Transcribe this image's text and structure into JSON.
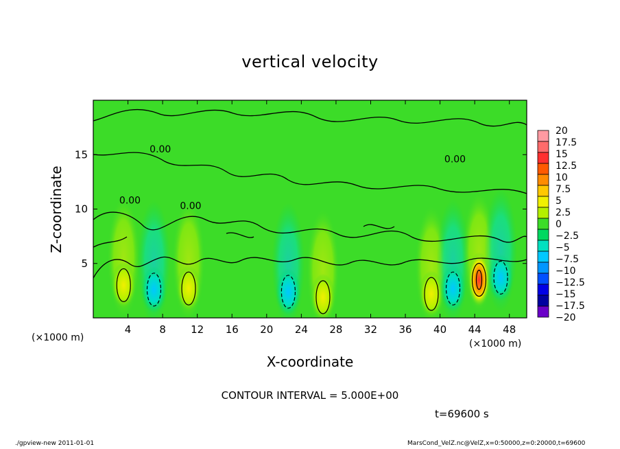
{
  "chart_data": {
    "type": "heatmap",
    "title": "vertical velocity",
    "xlabel": "X-coordinate",
    "ylabel": "Z-coordinate",
    "x_unit_label": "(×1000 m)",
    "x_ticks": [
      4,
      8,
      12,
      16,
      20,
      24,
      28,
      32,
      36,
      40,
      44,
      48
    ],
    "y_ticks": [
      5,
      10,
      15
    ],
    "xlim": [
      0,
      50
    ],
    "ylim": [
      0,
      20
    ],
    "colorbar": {
      "labels": [
        "20",
        "17.5",
        "15",
        "12.5",
        "10",
        "7.5",
        "5",
        "2.5",
        "0",
        "−2.5",
        "−5",
        "−7.5",
        "−10",
        "−12.5",
        "−15",
        "−17.5",
        "−20"
      ],
      "colors": [
        "#ff9aa2",
        "#ff6b6b",
        "#ff3030",
        "#ff5a00",
        "#ff8c00",
        "#ffc800",
        "#f0f000",
        "#b4f000",
        "#3cdc28",
        "#00d860",
        "#00e0c0",
        "#00c8ff",
        "#0096ff",
        "#0050ff",
        "#0000e6",
        "#0000a0",
        "#6a00c8"
      ]
    },
    "features": [
      {
        "x": 3.5,
        "z": 3.0,
        "sign": "positive"
      },
      {
        "x": 7.0,
        "z": 2.6,
        "sign": "negative"
      },
      {
        "x": 11.0,
        "z": 2.7,
        "sign": "positive"
      },
      {
        "x": 22.5,
        "z": 2.4,
        "sign": "negative"
      },
      {
        "x": 26.5,
        "z": 1.9,
        "sign": "positive"
      },
      {
        "x": 39.0,
        "z": 2.2,
        "sign": "positive"
      },
      {
        "x": 41.5,
        "z": 2.7,
        "sign": "negative"
      },
      {
        "x": 44.5,
        "z": 3.5,
        "sign": "positive"
      },
      {
        "x": 47.0,
        "z": 3.7,
        "sign": "negative"
      }
    ],
    "contour_labels": [
      {
        "text": "0.00",
        "x": 6.5,
        "z": 15.2
      },
      {
        "text": "0.00",
        "x": 10.0,
        "z": 10.0
      },
      {
        "text": "0.00",
        "x": 40.5,
        "z": 14.3
      },
      {
        "text": "0.00",
        "x": 3.0,
        "z": 10.5
      }
    ]
  },
  "contour_interval": "CONTOUR INTERVAL = 5.000E+00",
  "time_label": "t=69600 s",
  "footer_left": "./gpview-new  2011-01-01",
  "footer_right": "MarsCond_VelZ.nc@VelZ,x=0:50000,z=0:20000,t=69600"
}
